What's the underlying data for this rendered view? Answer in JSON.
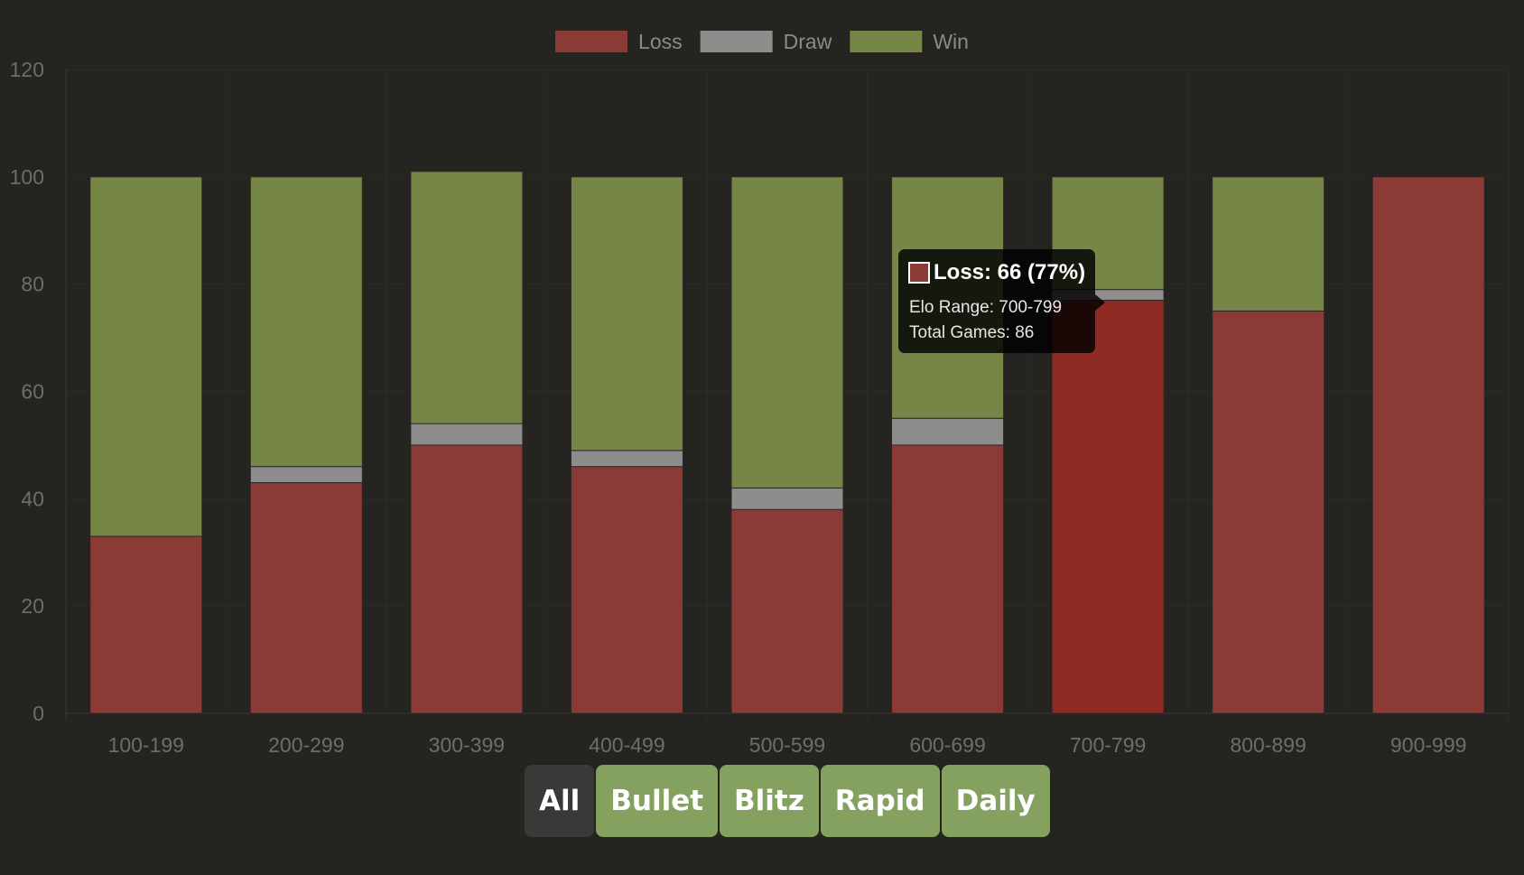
{
  "colors": {
    "background": "#262421",
    "loss": "#8b3a36",
    "loss_highlight": "#8f2a22",
    "draw": "#8e8d8b",
    "win": "#758646",
    "active_button": "#3a3937",
    "inactive_button": "#85a160"
  },
  "chart_data": {
    "type": "bar",
    "stacked": true,
    "categories": [
      "100-199",
      "200-299",
      "300-399",
      "400-499",
      "500-599",
      "600-699",
      "700-799",
      "800-899",
      "900-999"
    ],
    "series": [
      {
        "name": "Loss",
        "color": "#8b3a36",
        "values": [
          33,
          43,
          50,
          46,
          38,
          50,
          77,
          75,
          100
        ]
      },
      {
        "name": "Draw",
        "color": "#8e8d8b",
        "values": [
          0,
          3,
          4,
          3,
          4,
          5,
          2,
          0,
          0
        ]
      },
      {
        "name": "Win",
        "color": "#758646",
        "values": [
          67,
          54,
          47,
          51,
          58,
          45,
          21,
          25,
          0
        ]
      }
    ],
    "ylim": [
      0,
      120
    ],
    "yticks": [
      0,
      20,
      40,
      60,
      80,
      100,
      120
    ],
    "grid": true,
    "legend_position": "top-center",
    "highlighted_category": "700-799",
    "tooltip": {
      "title": "Loss: 66 (77%)",
      "lines": [
        "Elo Range: 700-799",
        "Total Games: 86"
      ]
    }
  },
  "filters": {
    "buttons": [
      {
        "label": "All",
        "active": true
      },
      {
        "label": "Bullet",
        "active": false
      },
      {
        "label": "Blitz",
        "active": false
      },
      {
        "label": "Rapid",
        "active": false
      },
      {
        "label": "Daily",
        "active": false
      }
    ]
  }
}
